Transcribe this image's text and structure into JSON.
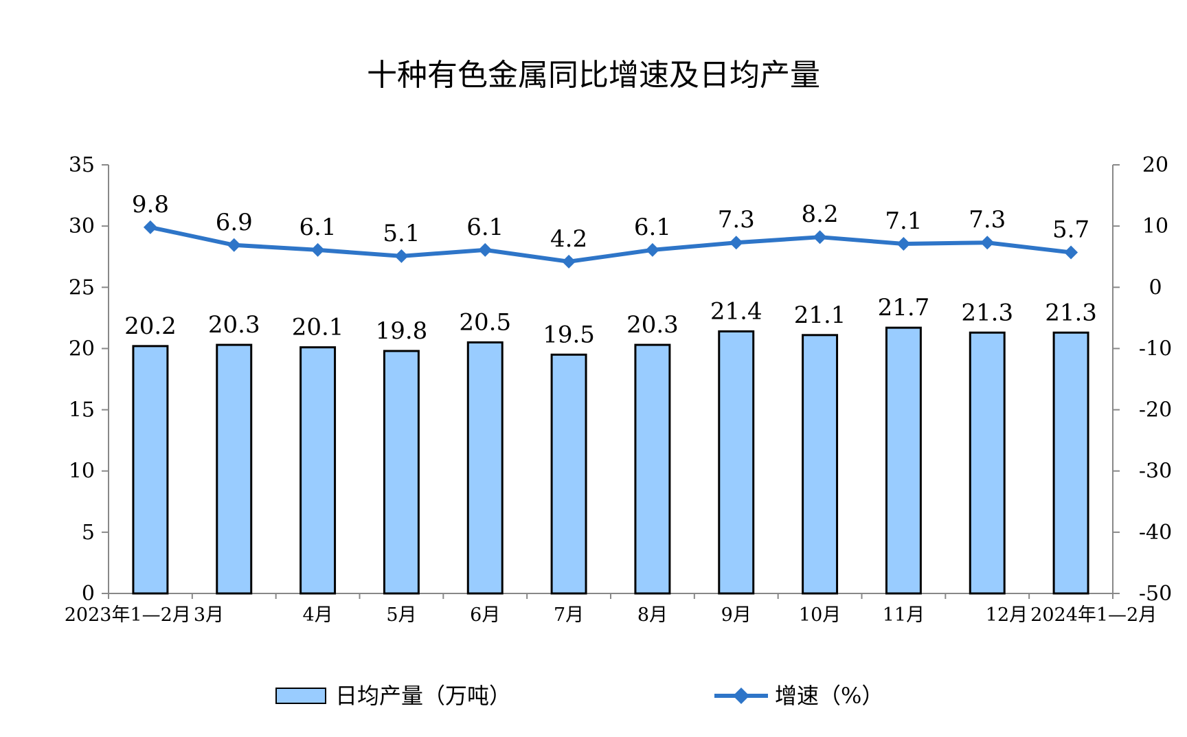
{
  "chart_data": {
    "type": "bar+line",
    "title": "十种有色金属同比增速及日均产量",
    "categories": [
      "2023年1—2月",
      "3月",
      "4月",
      "5月",
      "6月",
      "7月",
      "8月",
      "9月",
      "10月",
      "11月",
      "12月",
      "2024年1—2月"
    ],
    "series": [
      {
        "name": "日均产量（万吨）",
        "type": "bar",
        "axis": "left",
        "values": [
          20.2,
          20.3,
          20.1,
          19.8,
          20.5,
          19.5,
          20.3,
          21.4,
          21.1,
          21.7,
          21.3,
          21.3
        ],
        "color": "#99CCFF",
        "edge_color": "#000000"
      },
      {
        "name": "增速（%）",
        "type": "line",
        "axis": "right",
        "values": [
          9.8,
          6.9,
          6.1,
          5.1,
          6.1,
          4.2,
          6.1,
          7.3,
          8.2,
          7.1,
          7.3,
          5.7
        ],
        "color": "#2E75C8",
        "marker": "diamond"
      }
    ],
    "y_left": {
      "range": [
        0,
        35
      ],
      "ticks": [
        0,
        5,
        10,
        15,
        20,
        25,
        30,
        35
      ]
    },
    "y_right": {
      "range": [
        -50,
        20
      ],
      "ticks": [
        -50,
        -40,
        -30,
        -20,
        -10,
        0,
        10,
        20
      ]
    },
    "grid": false,
    "legend_position": "bottom"
  }
}
